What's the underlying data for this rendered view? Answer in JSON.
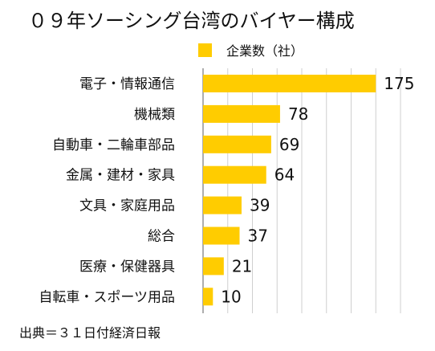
{
  "chart_data": {
    "type": "bar",
    "orientation": "horizontal",
    "title": "０９年ソーシング台湾のバイヤー構成",
    "categories": [
      "電子・情報通信",
      "機械類",
      "自動車・二輪車部品",
      "金属・建材・家具",
      "文具・家庭用品",
      "総合",
      "医療・保健器具",
      "自転車・スポーツ用品"
    ],
    "series": [
      {
        "name": "企業数（社）",
        "values": [
          175,
          78,
          69,
          64,
          39,
          37,
          21,
          10
        ],
        "color": "#FFCC00"
      }
    ],
    "xlim": [
      0,
      200
    ],
    "xlabel": "",
    "ylabel": "",
    "grid": true,
    "legend": "top",
    "source": "出典＝３１日付経済日報"
  }
}
